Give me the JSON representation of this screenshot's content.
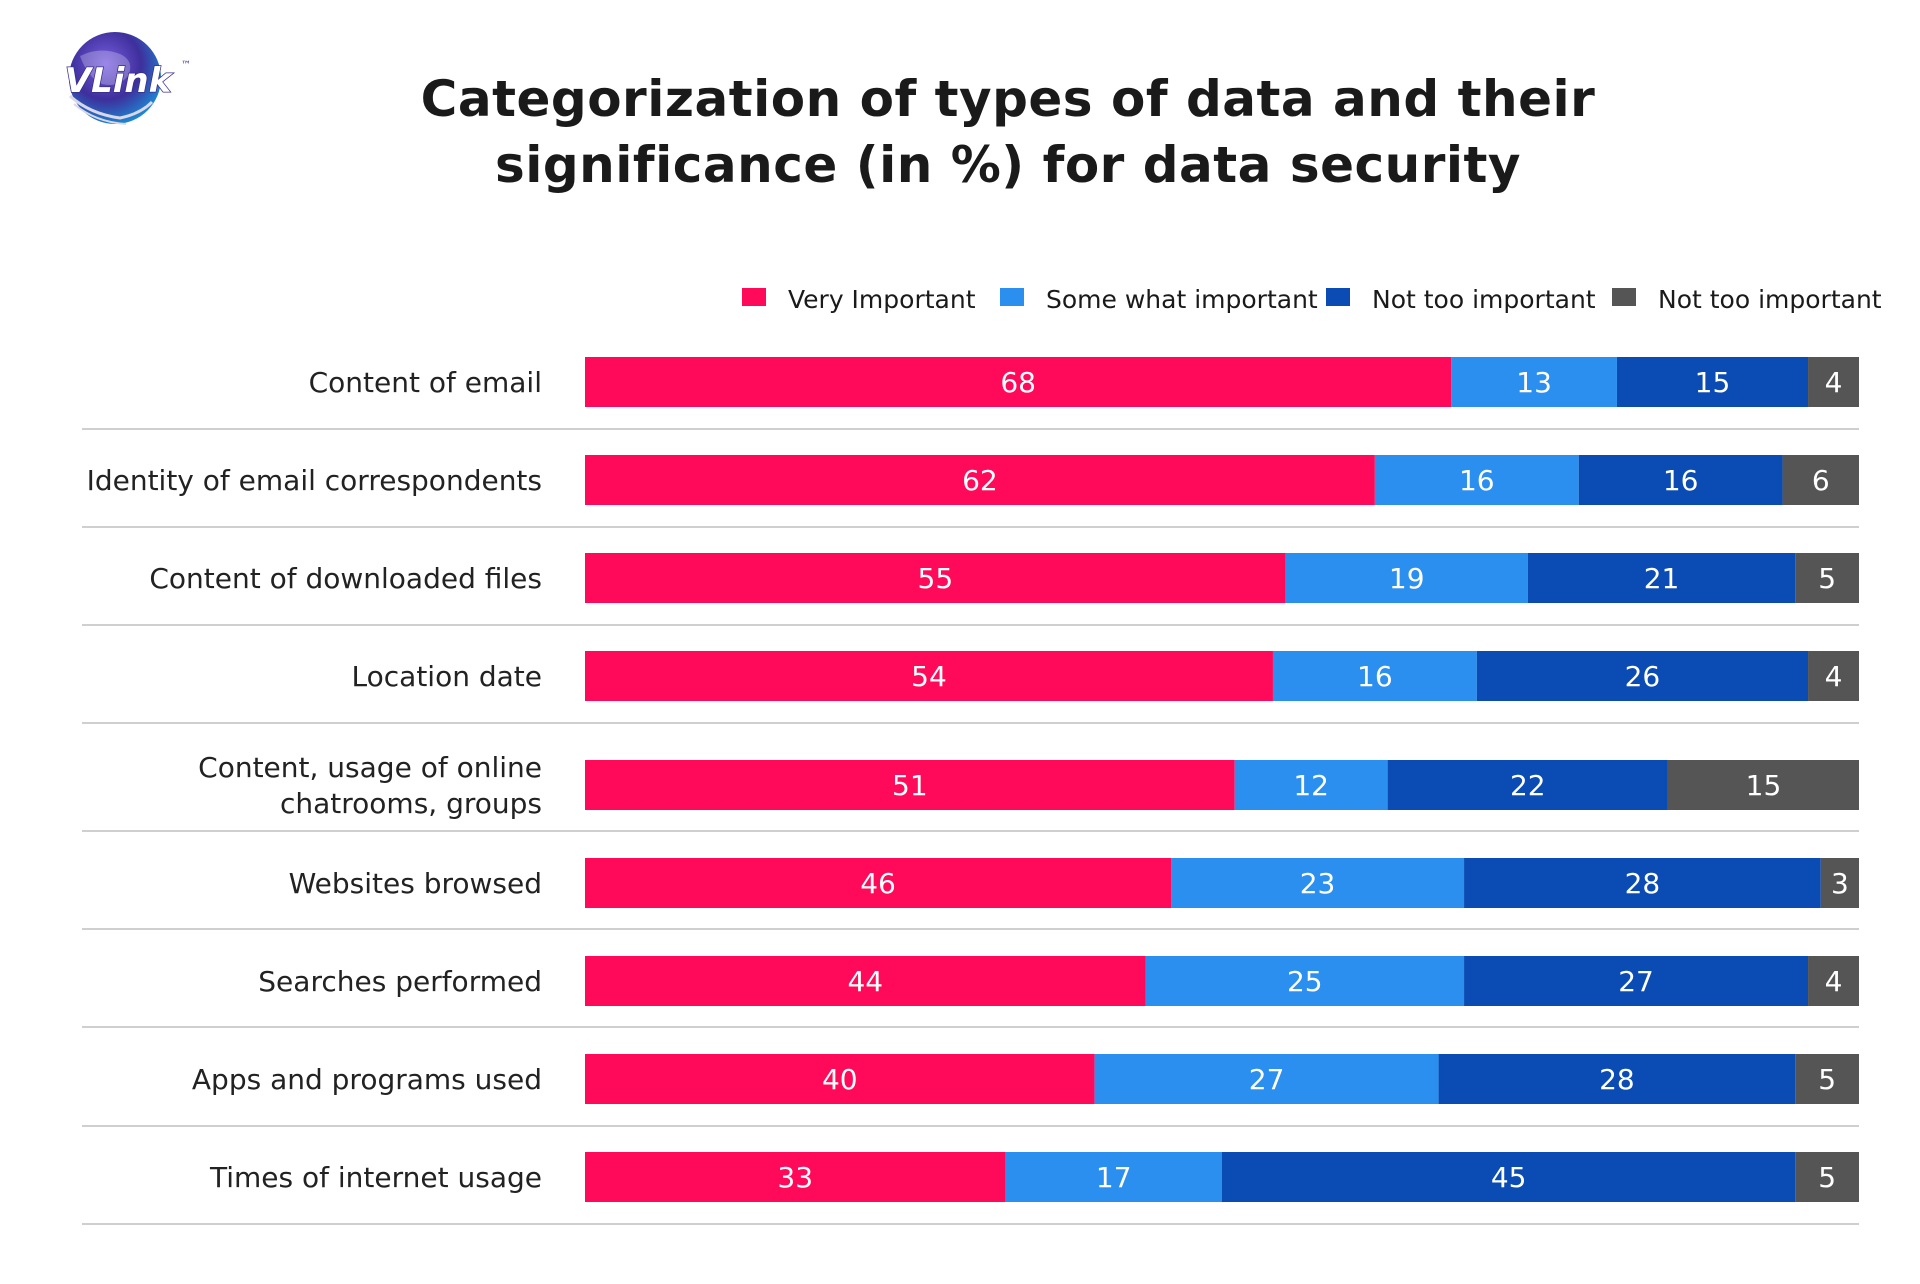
{
  "logo": {
    "text": "VLink",
    "tm": "™",
    "globe_color": "#4a3aa8",
    "text_color": "#ffffff"
  },
  "chart_data": {
    "type": "bar",
    "orientation": "horizontal",
    "stacked": true,
    "title": "Categorization of types of data and their significance (in %) for data security",
    "title_lines": [
      "Categorization of types of data and their",
      "significance (in %) for data security"
    ],
    "legend_placement": "top-right",
    "categories": [
      [
        "Content of email"
      ],
      [
        "Identity of email correspondents"
      ],
      [
        "Content of downloaded files"
      ],
      [
        "Location date"
      ],
      [
        "Content, usage of online",
        "chatrooms, groups"
      ],
      [
        "Websites browsed"
      ],
      [
        "Searches performed"
      ],
      [
        "Apps and programs used"
      ],
      [
        "Times of internet usage"
      ]
    ],
    "series": [
      {
        "name": "Very Important",
        "color": "#ff0a5a",
        "values": [
          68,
          62,
          55,
          54,
          51,
          46,
          44,
          40,
          33
        ]
      },
      {
        "name": "Some what important",
        "color": "#2b8ff0",
        "values": [
          13,
          16,
          19,
          16,
          12,
          23,
          25,
          27,
          17
        ]
      },
      {
        "name": "Not too important",
        "color": "#0a4bb4",
        "values": [
          15,
          16,
          21,
          26,
          22,
          28,
          27,
          28,
          45
        ]
      },
      {
        "name": "Not too important",
        "color": "#555555",
        "values": [
          4,
          6,
          5,
          4,
          15,
          3,
          4,
          5,
          5
        ]
      }
    ],
    "xlim": [
      0,
      100
    ]
  }
}
